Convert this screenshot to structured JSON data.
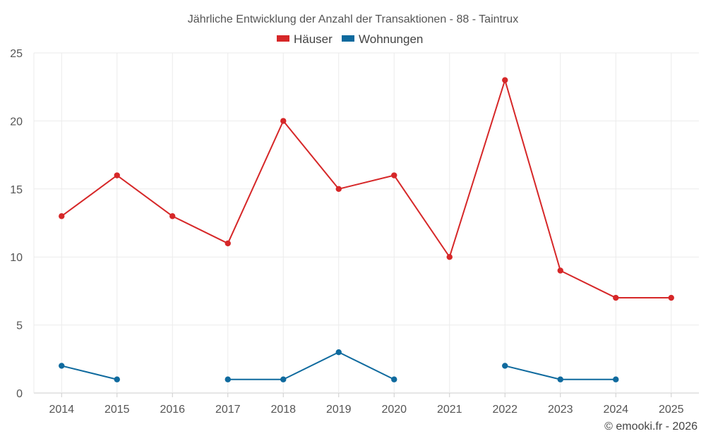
{
  "chart_data": {
    "type": "line",
    "title": "Jährliche Entwicklung der Anzahl der Transaktionen - 88 - Taintrux",
    "categories": [
      "2014",
      "2015",
      "2016",
      "2017",
      "2018",
      "2019",
      "2020",
      "2021",
      "2022",
      "2023",
      "2024",
      "2025"
    ],
    "series": [
      {
        "name": "Häuser",
        "color": "#d62728",
        "values": [
          13,
          16,
          13,
          11,
          20,
          15,
          16,
          10,
          23,
          9,
          7,
          7
        ]
      },
      {
        "name": "Wohnungen",
        "color": "#0f6a9e",
        "values": [
          2,
          1,
          null,
          1,
          1,
          3,
          1,
          null,
          2,
          1,
          1,
          null
        ]
      }
    ],
    "y_ticks": [
      0,
      5,
      10,
      15,
      20,
      25
    ],
    "ylim": [
      0,
      25
    ],
    "xlabel": "",
    "ylabel": "",
    "grid": true,
    "legend_position": "top-center"
  },
  "credit": "© emooki.fr - 2026"
}
